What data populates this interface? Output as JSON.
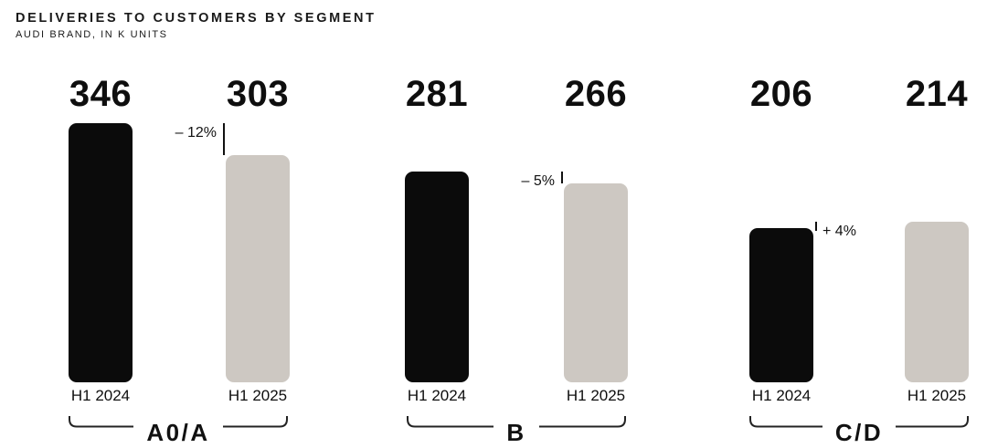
{
  "header": {
    "title": "DELIVERIES TO CUSTOMERS BY SEGMENT",
    "subtitle": "AUDI BRAND, IN K UNITS"
  },
  "chart_data": {
    "type": "bar",
    "title": "DELIVERIES TO CUSTOMERS BY SEGMENT",
    "subtitle": "AUDI BRAND, IN K UNITS",
    "unit": "k units",
    "categories": [
      "A0/A",
      "B",
      "C/D"
    ],
    "series": [
      {
        "name": "H1 2024",
        "color": "#0b0b0b",
        "values": [
          346,
          281,
          206
        ]
      },
      {
        "name": "H1 2025",
        "color": "#cdc8c2",
        "values": [
          303,
          266,
          214
        ]
      }
    ],
    "change_labels": [
      "– 12%",
      "– 5%",
      "+ 4%"
    ],
    "value_labels_shown": true,
    "ylim": [
      0,
      360
    ],
    "grid": false,
    "legend_position": "none"
  },
  "colors": {
    "bar_2024": "#0b0b0b",
    "bar_2025": "#cdc8c2",
    "text": "#111111",
    "background": "#ffffff"
  }
}
